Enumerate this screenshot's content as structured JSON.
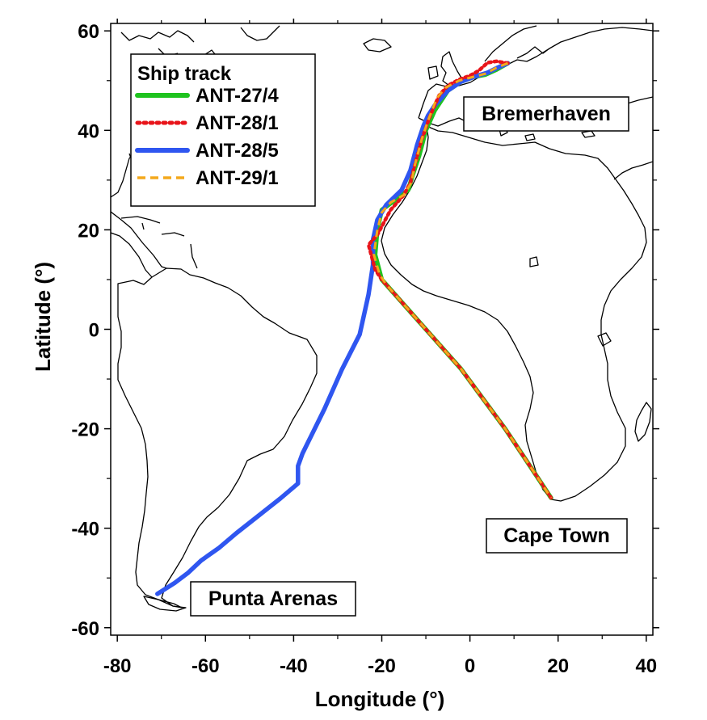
{
  "x_axis": {
    "label": "Longitude (°)",
    "range": [
      -81.5,
      41.5
    ],
    "ticks": [
      -80,
      -60,
      -40,
      -20,
      0,
      20,
      40
    ],
    "tick_labels": [
      "-80",
      "-60",
      "-40",
      "-20",
      "0",
      "20",
      "40"
    ]
  },
  "y_axis": {
    "label": "Latitude (°)",
    "range": [
      -61.5,
      61.5
    ],
    "ticks": [
      60,
      40,
      20,
      0,
      -20,
      -40,
      -60
    ],
    "tick_labels": [
      "60",
      "40",
      "20",
      "0",
      "-20",
      "-40",
      "-60"
    ]
  },
  "legend": {
    "title": "Ship track",
    "placement": "top-left",
    "entries": [
      {
        "label": "ANT-27/4",
        "color": "#1fc31f",
        "style": "solid"
      },
      {
        "label": "ANT-28/1",
        "color": "#e8141a",
        "style": "dotted"
      },
      {
        "label": "ANT-28/5",
        "color": "#2f56f0",
        "style": "solid"
      },
      {
        "label": "ANT-29/1",
        "color": "#f4a81c",
        "style": "dashed"
      }
    ]
  },
  "places": [
    {
      "label": "Bremerhaven",
      "lon": 8.6,
      "lat": 53.5
    },
    {
      "label": "Cape Town",
      "lon": 18.4,
      "lat": -33.9
    },
    {
      "label": "Punta Arenas",
      "lon": -70.9,
      "lat": -53.2
    }
  ],
  "chart_data": {
    "type": "line",
    "xlabel": "Longitude (°)",
    "ylabel": "Latitude (°)",
    "xlim": [
      -81.5,
      41.5
    ],
    "ylim": [
      -61.5,
      61.5
    ],
    "grid": false,
    "legend_placement": "top-left",
    "series": [
      {
        "name": "ANT-27/4",
        "color": "#1fc31f",
        "style": "solid",
        "points": [
          [
            18.4,
            -33.9
          ],
          [
            14,
            -28
          ],
          [
            8,
            -20
          ],
          [
            -2,
            -8
          ],
          [
            -12,
            2
          ],
          [
            -20,
            10
          ],
          [
            -21.5,
            15
          ],
          [
            -21,
            20
          ],
          [
            -20,
            24
          ],
          [
            -17,
            26
          ],
          [
            -14,
            28
          ],
          [
            -13,
            31
          ],
          [
            -11.5,
            35
          ],
          [
            -10,
            40
          ],
          [
            -8,
            44
          ],
          [
            -5,
            48
          ],
          [
            -2,
            49.8
          ],
          [
            1,
            50.8
          ],
          [
            3.5,
            51.2
          ],
          [
            6,
            52.2
          ],
          [
            8.6,
            53.5
          ]
        ]
      },
      {
        "name": "ANT-28/1",
        "color": "#e8141a",
        "style": "dotted",
        "points": [
          [
            8.6,
            53.5
          ],
          [
            6,
            53.9
          ],
          [
            4,
            53.6
          ],
          [
            2,
            52
          ],
          [
            0,
            51
          ],
          [
            -2.5,
            50.2
          ],
          [
            -5,
            49
          ],
          [
            -7,
            47
          ],
          [
            -9,
            43
          ],
          [
            -11,
            38
          ],
          [
            -12.5,
            33
          ],
          [
            -13.5,
            29.5
          ],
          [
            -15,
            27
          ],
          [
            -18,
            24
          ],
          [
            -21,
            19
          ],
          [
            -23,
            17
          ],
          [
            -21.5,
            12
          ],
          [
            -20,
            10
          ],
          [
            -12,
            2
          ],
          [
            -2,
            -8
          ],
          [
            8,
            -20
          ],
          [
            14,
            -28
          ],
          [
            18.4,
            -33.9
          ]
        ]
      },
      {
        "name": "ANT-28/5",
        "color": "#2f56f0",
        "style": "solid",
        "points": [
          [
            -70.9,
            -53.2
          ],
          [
            -67,
            -51
          ],
          [
            -64,
            -49
          ],
          [
            -61,
            -46.5
          ],
          [
            -57,
            -44
          ],
          [
            -53,
            -41
          ],
          [
            -48,
            -37.5
          ],
          [
            -43,
            -34
          ],
          [
            -39,
            -31
          ],
          [
            -39,
            -27.5
          ],
          [
            -38,
            -25
          ],
          [
            -33,
            -16
          ],
          [
            -29,
            -8
          ],
          [
            -25,
            -1
          ],
          [
            -23,
            7
          ],
          [
            -22,
            13
          ],
          [
            -22,
            18
          ],
          [
            -21,
            22
          ],
          [
            -19,
            25
          ],
          [
            -15.5,
            28
          ],
          [
            -13.5,
            32
          ],
          [
            -12,
            37
          ],
          [
            -10.5,
            41
          ],
          [
            -9.5,
            43
          ],
          [
            -8,
            45
          ],
          [
            -5,
            48
          ],
          [
            -2,
            49.8
          ],
          [
            1,
            50.8
          ],
          [
            4,
            51.6
          ],
          [
            6,
            52.5
          ],
          [
            8.6,
            53.5
          ]
        ]
      },
      {
        "name": "ANT-29/1",
        "color": "#f4a81c",
        "style": "dashed",
        "points": [
          [
            8.6,
            53.5
          ],
          [
            6,
            52.6
          ],
          [
            3.5,
            51.4
          ],
          [
            0.5,
            50.7
          ],
          [
            -2.5,
            50
          ],
          [
            -5.5,
            48.6
          ],
          [
            -7.5,
            46.5
          ],
          [
            -9.5,
            42
          ],
          [
            -11,
            38
          ],
          [
            -12.5,
            33
          ],
          [
            -13.3,
            29.5
          ],
          [
            -15,
            27
          ],
          [
            -18,
            25.5
          ],
          [
            -20,
            23.5
          ],
          [
            -21,
            20
          ],
          [
            -21.8,
            15
          ],
          [
            -20.5,
            11
          ],
          [
            -19,
            9
          ],
          [
            -12,
            2
          ],
          [
            -2,
            -8
          ],
          [
            8,
            -20
          ],
          [
            14,
            -28
          ],
          [
            18.4,
            -33.9
          ]
        ]
      }
    ]
  }
}
